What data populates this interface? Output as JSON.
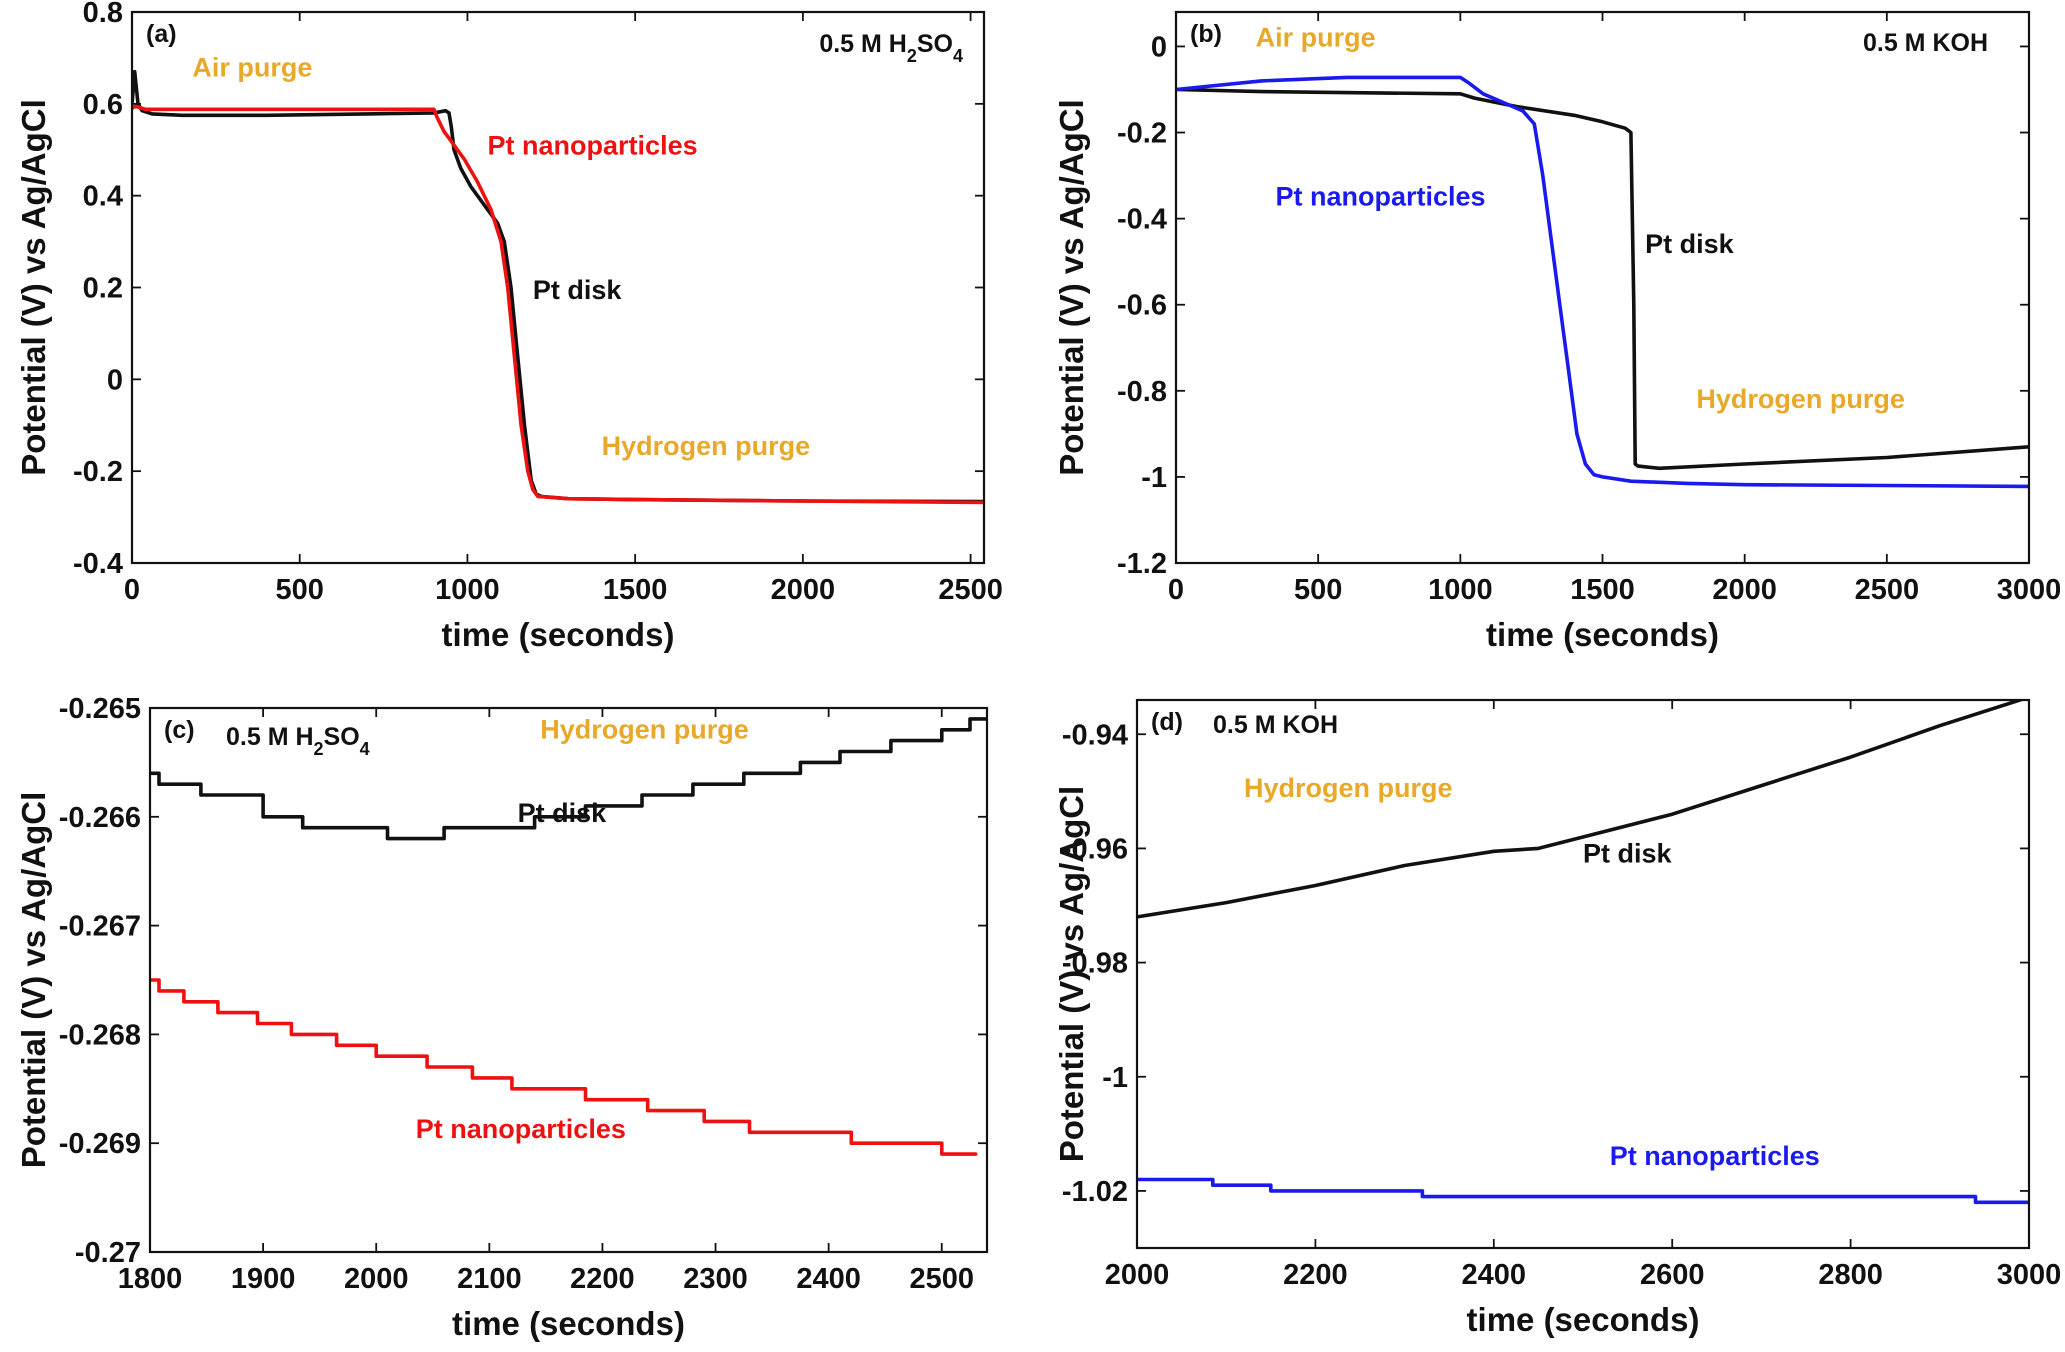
{
  "chart_data": [
    {
      "panel": "(a)",
      "type": "line",
      "title": "0.5 M H2SO4",
      "title_main": "0.5 M H",
      "title_sub1": "2",
      "title_mid": "SO",
      "title_sub2": "4",
      "xlabel": "time (seconds)",
      "ylabel": "Potential (V) vs Ag/AgCl",
      "xlim": [
        0,
        2540
      ],
      "ylim": [
        -0.4,
        0.8
      ],
      "xticks": [
        0,
        500,
        1000,
        1500,
        2000,
        2500
      ],
      "xtick_labels": [
        "0",
        "500",
        "1000",
        "1500",
        "2000",
        "2500"
      ],
      "yticks": [
        -0.4,
        -0.2,
        0,
        0.2,
        0.4,
        0.6,
        0.8
      ],
      "ytick_labels": [
        "-0.4",
        "-0.2",
        "0",
        "0.2",
        "0.4",
        "0.6",
        "0.8"
      ],
      "annotations": [
        {
          "text": "Air purge",
          "color": "#e8a92a",
          "x": 180,
          "y": 0.66
        },
        {
          "text": "Pt nanoparticles",
          "color": "#ee1111",
          "x": 1060,
          "y": 0.49
        },
        {
          "text": "Pt disk",
          "color": "#111111",
          "x": 1195,
          "y": 0.175
        },
        {
          "text": "Hydrogen purge",
          "color": "#e8a92a",
          "x": 1400,
          "y": -0.165
        }
      ],
      "series": [
        {
          "name": "Pt disk",
          "color": "#111111",
          "x": [
            0,
            8,
            18,
            30,
            60,
            150,
            400,
            700,
            900,
            935,
            945,
            952,
            960,
            980,
            1010,
            1050,
            1090,
            1110,
            1130,
            1150,
            1170,
            1190,
            1205,
            1220,
            1300,
            1500,
            2000,
            2540
          ],
          "y": [
            0.6,
            0.67,
            0.6,
            0.585,
            0.578,
            0.575,
            0.575,
            0.578,
            0.58,
            0.585,
            0.58,
            0.55,
            0.5,
            0.46,
            0.42,
            0.38,
            0.34,
            0.3,
            0.2,
            0.05,
            -0.1,
            -0.22,
            -0.25,
            -0.255,
            -0.26,
            -0.262,
            -0.265,
            -0.266
          ]
        },
        {
          "name": "Pt nanoparticles",
          "color": "#ee1111",
          "x": [
            0,
            10,
            40,
            200,
            600,
            900,
            910,
            930,
            950,
            990,
            1030,
            1070,
            1100,
            1120,
            1140,
            1160,
            1180,
            1195,
            1210,
            1300,
            1500,
            2000,
            2540
          ],
          "y": [
            0.59,
            0.595,
            0.588,
            0.588,
            0.588,
            0.588,
            0.57,
            0.54,
            0.52,
            0.48,
            0.43,
            0.37,
            0.3,
            0.2,
            0.05,
            -0.1,
            -0.2,
            -0.24,
            -0.255,
            -0.26,
            -0.262,
            -0.265,
            -0.268
          ]
        }
      ]
    },
    {
      "panel": "(b)",
      "type": "line",
      "title": "0.5 M KOH",
      "xlabel": "time (seconds)",
      "ylabel": "Potential (V) vs Ag/AgCl",
      "xlim": [
        0,
        3000
      ],
      "ylim": [
        -1.2,
        0.08
      ],
      "xticks": [
        0,
        500,
        1000,
        1500,
        2000,
        2500,
        3000
      ],
      "xtick_labels": [
        "0",
        "500",
        "1000",
        "1500",
        "2000",
        "2500",
        "3000"
      ],
      "yticks": [
        -1.2,
        -1,
        -0.8,
        -0.6,
        -0.4,
        -0.2,
        0
      ],
      "ytick_labels": [
        "-1.2",
        "-1",
        "-0.8",
        "-0.6",
        "-0.4",
        "-0.2",
        "0"
      ],
      "annotations": [
        {
          "text": "Air purge",
          "color": "#e8a92a",
          "x": 280,
          "y": 0.0
        },
        {
          "text": "Pt nanoparticles",
          "color": "#1a1aee",
          "x": 350,
          "y": -0.37
        },
        {
          "text": "Pt disk",
          "color": "#111111",
          "x": 1650,
          "y": -0.48
        },
        {
          "text": "Hydrogen purge",
          "color": "#e8a92a",
          "x": 1830,
          "y": -0.84
        }
      ],
      "series": [
        {
          "name": "Pt disk",
          "color": "#111111",
          "x": [
            0,
            300,
            700,
            1000,
            1050,
            1200,
            1400,
            1500,
            1580,
            1600,
            1610,
            1615,
            1625,
            1700,
            2000,
            2500,
            3000
          ],
          "y": [
            -0.1,
            -0.105,
            -0.108,
            -0.11,
            -0.12,
            -0.14,
            -0.16,
            -0.175,
            -0.19,
            -0.2,
            -0.6,
            -0.97,
            -0.975,
            -0.98,
            -0.97,
            -0.955,
            -0.93
          ]
        },
        {
          "name": "Pt nanoparticles",
          "color": "#1a1aee",
          "x": [
            0,
            300,
            600,
            1000,
            1030,
            1080,
            1150,
            1220,
            1260,
            1290,
            1320,
            1350,
            1380,
            1410,
            1440,
            1470,
            1500,
            1600,
            1800,
            2000,
            2500,
            3000
          ],
          "y": [
            -0.1,
            -0.08,
            -0.072,
            -0.072,
            -0.085,
            -0.11,
            -0.13,
            -0.15,
            -0.18,
            -0.3,
            -0.45,
            -0.6,
            -0.75,
            -0.9,
            -0.97,
            -0.995,
            -1.0,
            -1.01,
            -1.015,
            -1.018,
            -1.02,
            -1.022
          ]
        }
      ]
    },
    {
      "panel": "(c)",
      "type": "line",
      "title": "0.5 M H2SO4",
      "title_main": "0.5 M H",
      "title_sub1": "2",
      "title_mid": "SO",
      "title_sub2": "4",
      "xlabel": "time (seconds)",
      "ylabel": "Potential (V) vs Ag/AgCl",
      "xlim": [
        1800,
        2540
      ],
      "ylim": [
        -0.27,
        -0.265
      ],
      "xticks": [
        1800,
        1900,
        2000,
        2100,
        2200,
        2300,
        2400,
        2500
      ],
      "xtick_labels": [
        "1800",
        "1900",
        "2000",
        "2100",
        "2200",
        "2300",
        "2400",
        "2500"
      ],
      "yticks": [
        -0.27,
        -0.269,
        -0.268,
        -0.267,
        -0.266,
        -0.265
      ],
      "ytick_labels": [
        "-0.27",
        "-0.269",
        "-0.268",
        "-0.267",
        "-0.266",
        "-0.265"
      ],
      "annotations": [
        {
          "text": "Hydrogen purge",
          "color": "#e8a92a",
          "x": 2145,
          "y": -0.26528
        },
        {
          "text": "Pt disk",
          "color": "#111111",
          "x": 2125,
          "y": -0.26605
        },
        {
          "text": "Pt nanoparticles",
          "color": "#ee1111",
          "x": 2035,
          "y": -0.26895
        }
      ],
      "series": [
        {
          "name": "Pt disk",
          "color": "#111111",
          "step": true,
          "x": [
            1800,
            1808,
            1845,
            1900,
            1935,
            2010,
            2060,
            2140,
            2185,
            2235,
            2280,
            2325,
            2375,
            2410,
            2455,
            2500,
            2525,
            2540
          ],
          "y": [
            -0.2656,
            -0.2657,
            -0.2658,
            -0.266,
            -0.2661,
            -0.2662,
            -0.2661,
            -0.266,
            -0.2659,
            -0.2658,
            -0.2657,
            -0.2656,
            -0.2655,
            -0.2654,
            -0.2653,
            -0.2652,
            -0.2651,
            -0.2651
          ]
        },
        {
          "name": "Pt nanoparticles",
          "color": "#ee1111",
          "step": true,
          "x": [
            1800,
            1808,
            1830,
            1860,
            1895,
            1925,
            1965,
            2000,
            2045,
            2085,
            2120,
            2185,
            2240,
            2290,
            2330,
            2420,
            2500,
            2530
          ],
          "y": [
            -0.2675,
            -0.2676,
            -0.2677,
            -0.2678,
            -0.2679,
            -0.268,
            -0.2681,
            -0.2682,
            -0.2683,
            -0.2684,
            -0.2685,
            -0.2686,
            -0.2687,
            -0.2688,
            -0.2689,
            -0.269,
            -0.2691,
            -0.2691
          ]
        }
      ]
    },
    {
      "panel": "(d)",
      "type": "line",
      "title": "0.5 M KOH",
      "xlabel": "time (seconds)",
      "ylabel": "Potential (V) vs Ag/AgCl",
      "xlim": [
        2000,
        3000
      ],
      "ylim": [
        -1.03,
        -0.934
      ],
      "xticks": [
        2000,
        2200,
        2400,
        2600,
        2800,
        3000
      ],
      "xtick_labels": [
        "2000",
        "2200",
        "2400",
        "2600",
        "2800",
        "3000"
      ],
      "yticks": [
        -1.02,
        -1,
        -0.98,
        -0.96,
        -0.94
      ],
      "ytick_labels": [
        "-1.02",
        "-1",
        "-0.98",
        "-0.96",
        "-0.94"
      ],
      "annotations": [
        {
          "text": "Hydrogen purge",
          "color": "#e8a92a",
          "x": 2120,
          "y": -0.951
        },
        {
          "text": "Pt disk",
          "color": "#111111",
          "x": 2500,
          "y": -0.9625
        },
        {
          "text": "Pt nanoparticles",
          "color": "#1a1aee",
          "x": 2530,
          "y": -1.0155
        }
      ],
      "series": [
        {
          "name": "Pt disk",
          "color": "#111111",
          "x": [
            2000,
            2100,
            2200,
            2300,
            2400,
            2450,
            2500,
            2600,
            2700,
            2800,
            2900,
            3000
          ],
          "y": [
            -0.972,
            -0.9695,
            -0.9665,
            -0.963,
            -0.9605,
            -0.96,
            -0.958,
            -0.954,
            -0.949,
            -0.944,
            -0.9385,
            -0.9335
          ]
        },
        {
          "name": "Pt nanoparticles",
          "color": "#1a1aee",
          "step": true,
          "x": [
            2000,
            2085,
            2150,
            2320,
            2940,
            3000
          ],
          "y": [
            -1.018,
            -1.019,
            -1.02,
            -1.021,
            -1.022,
            -1.022
          ]
        }
      ]
    }
  ]
}
